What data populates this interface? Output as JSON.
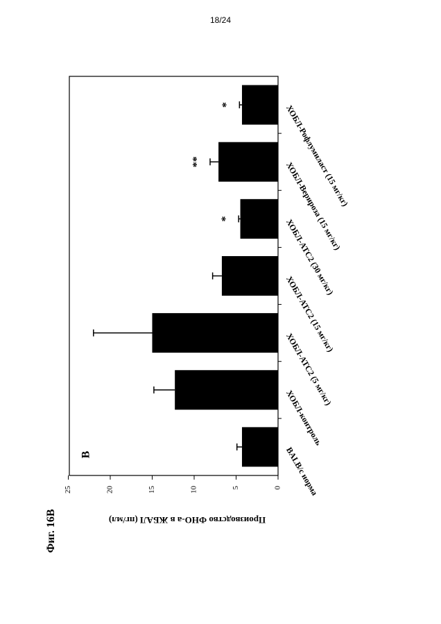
{
  "page": {
    "number": "18/24"
  },
  "figure": {
    "label": "Фиг. 16В"
  },
  "chart_data": {
    "type": "bar",
    "panel_label": "В",
    "ylabel": "Производство ФНО-а в ЖБАЛ (пг/мл)",
    "xlabel": "",
    "ylim": [
      0,
      25
    ],
    "yticks": [
      0,
      5,
      10,
      15,
      20,
      25
    ],
    "orientation": "rotated-90-ccw",
    "categories": [
      "BALB/c норма",
      "ХОБЛ-контроль",
      "ХОБЛ-АТС2 (5 мг/кг)",
      "ХОБЛ-АТС2 (15 мг/кг)",
      "ХОБЛ-АТС2 (30 мг/кг)",
      "ХОБЛ-Верироза (15 мг/кг)",
      "ХОБЛ-Рофлумиласт (15 мг/кг)"
    ],
    "values": [
      4.3,
      12.3,
      15.0,
      6.7,
      4.5,
      7.1,
      4.3
    ],
    "errors": [
      0.6,
      2.5,
      7.0,
      1.1,
      0.2,
      1.0,
      0.3
    ],
    "significance": [
      "",
      "",
      "",
      "",
      "*",
      "**",
      "*"
    ],
    "bar_color": "#000000",
    "grid": false,
    "legend": "none"
  }
}
